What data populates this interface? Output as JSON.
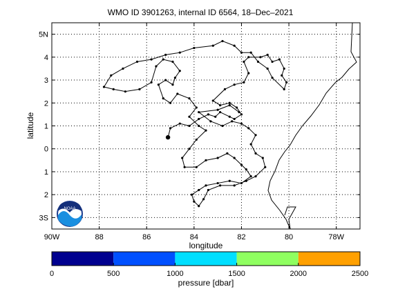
{
  "chart_data": {
    "type": "line",
    "title": "WMO ID 3901263, internal ID 6564, 18–Dec–2021",
    "xlabel": "longitude",
    "ylabel": "latitude",
    "xlim": [
      -90,
      -77
    ],
    "ylim": [
      -3.5,
      5.5
    ],
    "grid": true,
    "x_ticks": [
      {
        "value": -90,
        "label": "90W"
      },
      {
        "value": -88,
        "label": "88"
      },
      {
        "value": -86,
        "label": "86"
      },
      {
        "value": -84,
        "label": "84"
      },
      {
        "value": -82,
        "label": "82"
      },
      {
        "value": -80,
        "label": "80"
      },
      {
        "value": -78,
        "label": "78W"
      }
    ],
    "y_ticks": [
      {
        "value": 5,
        "label": "5N"
      },
      {
        "value": 4,
        "label": "4"
      },
      {
        "value": 3,
        "label": "3"
      },
      {
        "value": 2,
        "label": "2"
      },
      {
        "value": 1,
        "label": "1"
      },
      {
        "value": 0,
        "label": "0"
      },
      {
        "value": -1,
        "label": "1"
      },
      {
        "value": -2,
        "label": "2"
      },
      {
        "value": -3,
        "label": "3S"
      }
    ],
    "series": [
      {
        "values": [
          [
            -85.1,
            0.5
          ],
          [
            -85.0,
            0.9
          ],
          [
            -84.6,
            1.1
          ],
          [
            -84.2,
            1.0
          ],
          [
            -83.8,
            1.3
          ],
          [
            -83.4,
            1.5
          ],
          [
            -83.1,
            1.4
          ],
          [
            -82.9,
            1.6
          ],
          [
            -82.5,
            1.4
          ],
          [
            -82.3,
            1.3
          ],
          [
            -82.0,
            1.5
          ],
          [
            -82.2,
            1.8
          ],
          [
            -82.5,
            2.0
          ],
          [
            -82.9,
            1.9
          ],
          [
            -83.2,
            2.1
          ],
          [
            -82.7,
            2.6
          ],
          [
            -82.3,
            2.8
          ],
          [
            -81.9,
            2.9
          ],
          [
            -81.7,
            3.3
          ],
          [
            -81.9,
            3.8
          ],
          [
            -81.7,
            4.0
          ],
          [
            -81.2,
            4.0
          ],
          [
            -80.9,
            4.1
          ],
          [
            -80.7,
            3.8
          ],
          [
            -80.4,
            3.9
          ],
          [
            -80.2,
            3.5
          ],
          [
            -80.3,
            3.2
          ],
          [
            -80.1,
            2.9
          ],
          [
            -80.2,
            2.6
          ],
          [
            -80.7,
            3.1
          ],
          [
            -80.9,
            3.5
          ],
          [
            -81.3,
            3.8
          ],
          [
            -81.6,
            4.2
          ],
          [
            -82.0,
            4.2
          ],
          [
            -82.3,
            4.5
          ],
          [
            -82.8,
            4.7
          ],
          [
            -83.2,
            4.5
          ],
          [
            -84.0,
            4.4
          ],
          [
            -84.6,
            4.2
          ],
          [
            -85.2,
            4.1
          ],
          [
            -85.8,
            3.9
          ],
          [
            -86.4,
            3.8
          ],
          [
            -87.0,
            3.5
          ],
          [
            -87.5,
            3.2
          ],
          [
            -87.8,
            2.7
          ],
          [
            -87.4,
            2.6
          ],
          [
            -86.9,
            2.5
          ],
          [
            -86.3,
            2.6
          ],
          [
            -85.8,
            2.9
          ],
          [
            -85.6,
            3.6
          ],
          [
            -85.3,
            3.9
          ],
          [
            -84.9,
            3.8
          ],
          [
            -84.6,
            3.4
          ],
          [
            -84.8,
            3.1
          ],
          [
            -84.9,
            2.8
          ],
          [
            -85.2,
            3.0
          ],
          [
            -85.5,
            2.8
          ],
          [
            -85.3,
            2.2
          ],
          [
            -85.0,
            2.0
          ],
          [
            -84.7,
            2.4
          ],
          [
            -84.2,
            2.2
          ],
          [
            -83.9,
            1.8
          ],
          [
            -84.2,
            1.4
          ],
          [
            -83.8,
            1.0
          ],
          [
            -83.5,
            0.8
          ],
          [
            -83.9,
            0.4
          ],
          [
            -84.2,
            0.0
          ],
          [
            -84.5,
            -0.4
          ],
          [
            -84.4,
            -0.8
          ],
          [
            -83.9,
            -0.8
          ],
          [
            -83.5,
            -0.5
          ],
          [
            -83.0,
            -0.4
          ],
          [
            -82.6,
            -0.2
          ],
          [
            -82.3,
            -0.4
          ],
          [
            -82.0,
            -0.7
          ],
          [
            -81.8,
            -0.9
          ],
          [
            -81.6,
            -1.2
          ],
          [
            -82.0,
            -1.5
          ],
          [
            -82.5,
            -1.4
          ],
          [
            -83.0,
            -1.5
          ],
          [
            -83.5,
            -1.6
          ],
          [
            -83.8,
            -1.8
          ],
          [
            -84.1,
            -2.0
          ],
          [
            -84.0,
            -2.3
          ],
          [
            -83.8,
            -2.5
          ],
          [
            -83.6,
            -2.2
          ],
          [
            -83.4,
            -1.8
          ],
          [
            -82.9,
            -1.6
          ],
          [
            -82.3,
            -1.6
          ],
          [
            -81.8,
            -1.4
          ],
          [
            -81.4,
            -1.2
          ],
          [
            -81.0,
            -0.8
          ],
          [
            -81.1,
            -0.4
          ],
          [
            -81.4,
            -0.2
          ],
          [
            -81.6,
            0.2
          ],
          [
            -81.4,
            0.6
          ],
          [
            -81.7,
            0.9
          ],
          [
            -82.0,
            1.1
          ],
          [
            -82.4,
            1.2
          ],
          [
            -82.8,
            1.0
          ],
          [
            -83.3,
            1.2
          ],
          [
            -83.8,
            1.6
          ],
          [
            -83.0,
            1.7
          ],
          [
            -82.5,
            1.9
          ],
          [
            -82.1,
            1.6
          ]
        ]
      }
    ],
    "colorbar": {
      "label": "pressure [dbar]",
      "min": 0,
      "max": 2500,
      "tick_labels": [
        "0",
        "500",
        "1000",
        "1500",
        "2000",
        "2500"
      ],
      "colors": [
        "#00008f",
        "#0050ff",
        "#00dfff",
        "#8fff60",
        "#ffa000"
      ]
    },
    "logo_text": "NOAA"
  }
}
